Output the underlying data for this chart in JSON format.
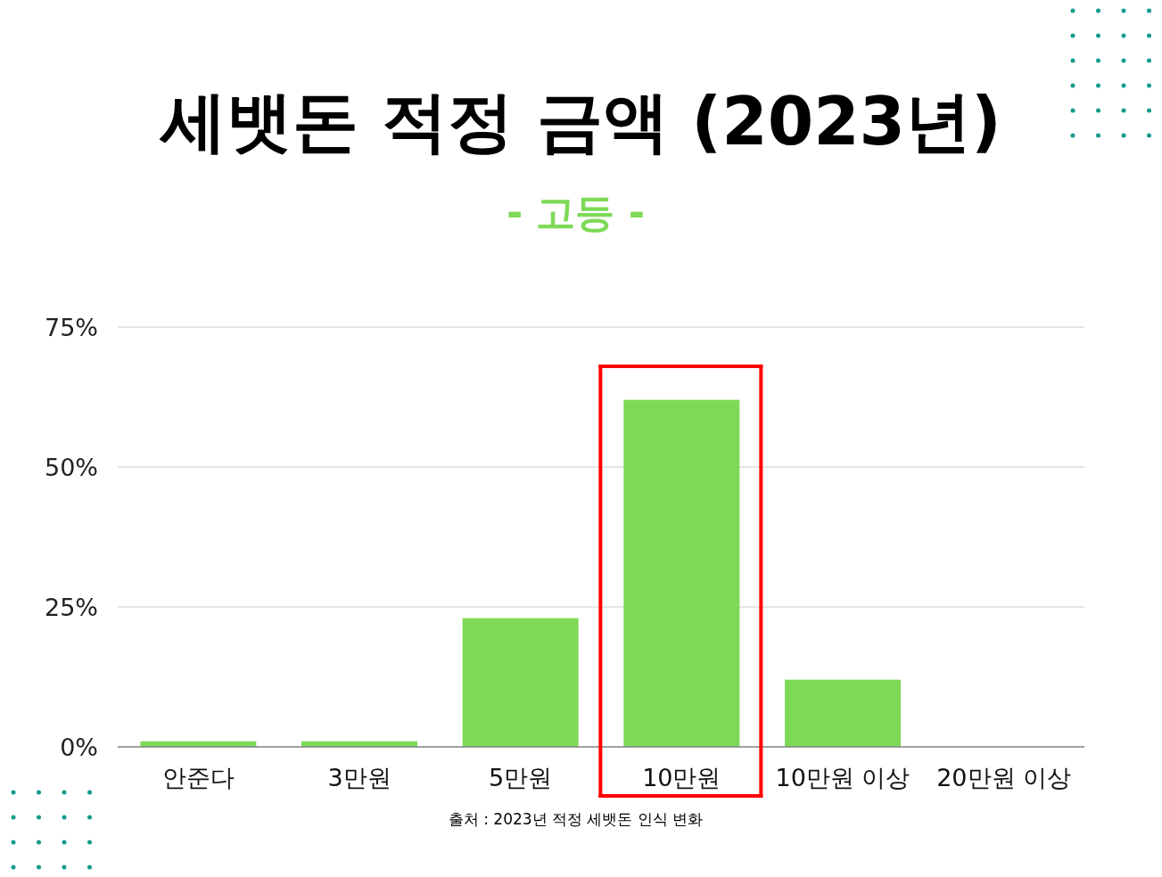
{
  "chart_data": {
    "type": "bar",
    "title": "세뱃돈 적정 금액 (2023년)",
    "subtitle": "- 고등 -",
    "categories": [
      "안준다",
      "3만원",
      "5만원",
      "10만원",
      "10만원 이상",
      "20만원 이상"
    ],
    "values": [
      1,
      1,
      23,
      62,
      12,
      0
    ],
    "color": "#7ed957",
    "ylim": [
      0,
      75
    ],
    "yticks": [
      {
        "value": 0,
        "label": "0%"
      },
      {
        "value": 25,
        "label": "25%"
      },
      {
        "value": 50,
        "label": "50%"
      },
      {
        "value": 75,
        "label": "75%"
      }
    ],
    "grid": "y",
    "annotations": [
      "출처 : 2023년 적정 세뱃돈 인식 변화"
    ]
  }
}
